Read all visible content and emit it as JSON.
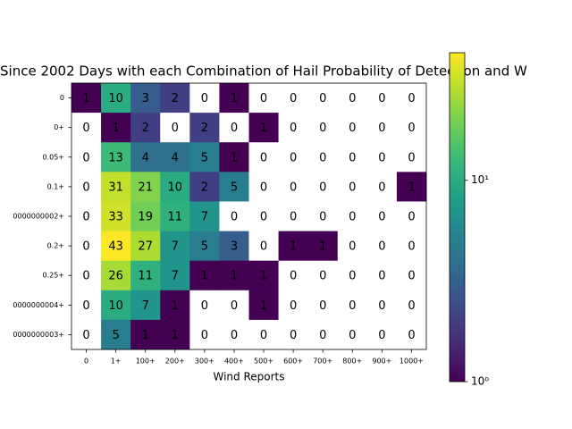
{
  "chart_data": {
    "type": "heatmap",
    "title": "Since 2002 Days with each Combination of Hail Probability of Detection and W",
    "xlabel": "Wind Reports",
    "categories": [
      "0",
      "1+",
      "100+",
      "200+",
      "300+",
      "400+",
      "500+",
      "600+",
      "700+",
      "800+",
      "900+",
      "1000+"
    ],
    "rows": [
      "0",
      "0+",
      "0.05+",
      "0.1+",
      "0000000002+",
      "0.2+",
      "0.25+",
      "0000000004+",
      "0000000003+"
    ],
    "values": [
      [
        1,
        10,
        3,
        2,
        0,
        1,
        0,
        0,
        0,
        0,
        0,
        0
      ],
      [
        0,
        1,
        2,
        0,
        2,
        0,
        1,
        0,
        0,
        0,
        0,
        0
      ],
      [
        0,
        13,
        4,
        4,
        5,
        1,
        0,
        0,
        0,
        0,
        0,
        0
      ],
      [
        0,
        31,
        21,
        10,
        2,
        5,
        0,
        0,
        0,
        0,
        0,
        1
      ],
      [
        0,
        33,
        19,
        11,
        7,
        0,
        0,
        0,
        0,
        0,
        0,
        0
      ],
      [
        0,
        43,
        27,
        7,
        5,
        3,
        0,
        1,
        1,
        0,
        0,
        0
      ],
      [
        0,
        26,
        11,
        7,
        1,
        1,
        1,
        0,
        0,
        0,
        0,
        0
      ],
      [
        0,
        10,
        7,
        1,
        0,
        0,
        1,
        0,
        0,
        0,
        0,
        0
      ],
      [
        0,
        5,
        1,
        1,
        0,
        0,
        0,
        0,
        0,
        0,
        0,
        0
      ]
    ],
    "colormap": "viridis",
    "log_scale": true,
    "zlim": [
      1,
      43
    ],
    "zticks": [
      {
        "value": 1,
        "label": "10⁰"
      },
      {
        "value": 10,
        "label": "10¹"
      }
    ]
  }
}
